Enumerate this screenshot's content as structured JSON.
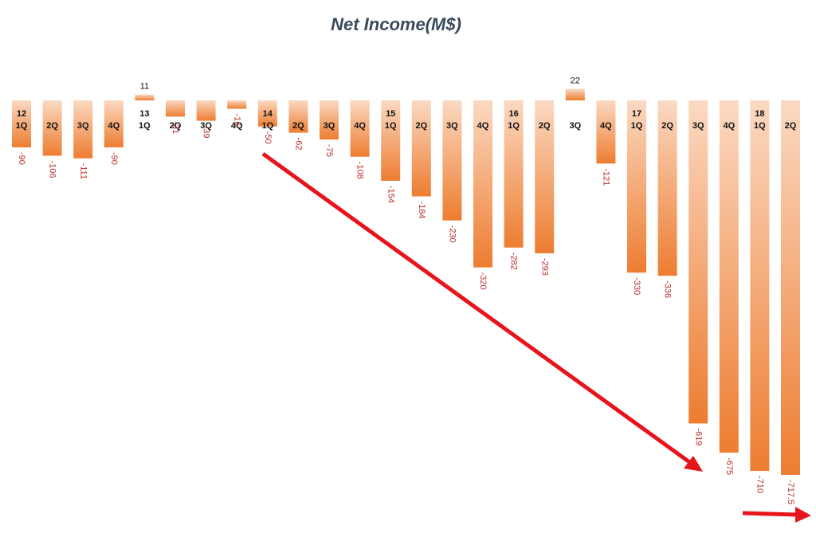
{
  "chart_data": {
    "type": "bar",
    "title": "Net Income(M$)",
    "categories": [
      "1Q",
      "2Q",
      "3Q",
      "4Q",
      "1Q",
      "2Q",
      "3Q",
      "4Q",
      "1Q",
      "2Q",
      "3Q",
      "4Q",
      "1Q",
      "2Q",
      "3Q",
      "4Q",
      "1Q",
      "2Q",
      "3Q",
      "4Q",
      "1Q",
      "2Q",
      "3Q",
      "4Q",
      "1Q",
      "2Q"
    ],
    "years": [
      "12",
      null,
      null,
      null,
      "13",
      null,
      null,
      null,
      "14",
      null,
      null,
      null,
      "15",
      null,
      null,
      null,
      "16",
      null,
      null,
      null,
      "17",
      null,
      null,
      null,
      "18",
      null
    ],
    "values": [
      -90,
      -106,
      -111,
      -90,
      11,
      -31,
      -39,
      -16,
      -50,
      -62,
      -75,
      -108,
      -154,
      -184,
      -230,
      -320,
      -282,
      -293,
      22,
      -121,
      -330,
      -336,
      -619,
      -675,
      -710,
      -717.5
    ],
    "color": "#ed7d31"
  }
}
